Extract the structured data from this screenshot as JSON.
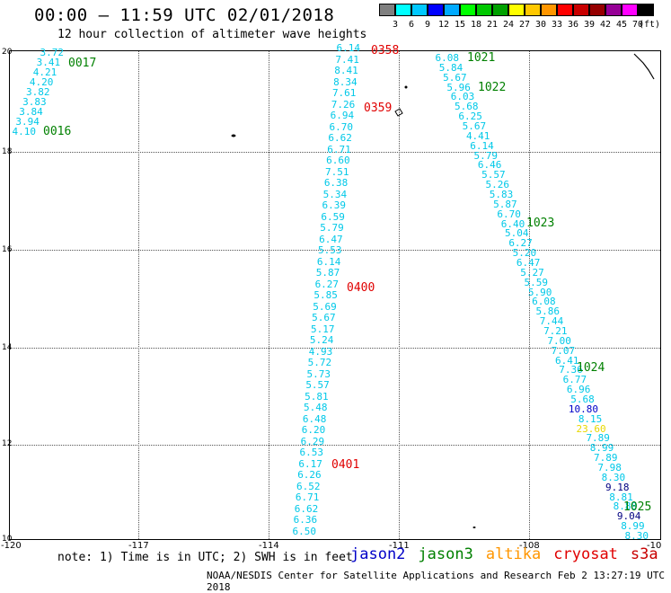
{
  "title": "00:00 – 11:59 UTC 02/01/2018",
  "subtitle": "12 hour collection of altimeter wave heights",
  "colorbar": {
    "labels": [
      "3",
      "6",
      "9",
      "12",
      "15",
      "18",
      "21",
      "24",
      "27",
      "30",
      "33",
      "36",
      "39",
      "42",
      "45",
      "70"
    ],
    "colors": [
      "#7f7f7f",
      "#00ffff",
      "#00c8ff",
      "#0000ff",
      "#00aaff",
      "#00ff00",
      "#00c800",
      "#00a000",
      "#ffff00",
      "#ffc800",
      "#ff9600",
      "#ff0000",
      "#c80000",
      "#960000",
      "#960096",
      "#ff00ff",
      "#000000"
    ],
    "unit": "(ft)"
  },
  "map": {
    "y_axis_labels": [
      "20",
      "18",
      "16",
      "14",
      "12",
      "10"
    ],
    "x_axis_labels": [
      "-120",
      "-117",
      "-114",
      "-111",
      "-108",
      "-10"
    ]
  },
  "tracks": [
    {
      "id": "t1",
      "color": "#00c8e8",
      "values": [
        "3.72",
        "3.41",
        "4.21",
        "4.20",
        "3.82",
        "3.83",
        "3.84",
        "3.94",
        "4.10"
      ]
    },
    {
      "id": "t2",
      "color": "#00c8e8",
      "values": [
        "6.14",
        "7.41",
        "8.41",
        "8.34",
        "7.61",
        "7.26",
        "6.94",
        "6.70",
        "6.62",
        "6.71",
        "6.60",
        "7.51",
        "6.38",
        "5.34",
        "6.39",
        "6.59",
        "5.79",
        "6.47",
        "5.53",
        "6.14",
        "5.87",
        "6.27",
        "5.85",
        "5.69",
        "5.67",
        "5.17",
        "5.24",
        "4.93",
        "5.72",
        "5.73",
        "5.57",
        "5.81",
        "5.48",
        "6.48",
        "6.20",
        "6.29",
        "6.53",
        "6.17",
        "6.26",
        "6.52",
        "6.71",
        "6.62",
        "6.36",
        "6.50"
      ]
    },
    {
      "id": "t3",
      "color": "#00c8e8",
      "values": [
        "6.08",
        "5.84",
        "5.67",
        "5.96",
        "6.03",
        "5.68",
        "6.25",
        "5.67",
        "4.41",
        "6.14",
        "5.79",
        "6.46",
        "5.57",
        "5.26",
        "5.83",
        "5.87",
        "6.70",
        "6.40",
        "5.04",
        "6.27",
        "5.20",
        "6.47",
        "5.27",
        "5.59",
        "5.90",
        "6.08",
        "5.86",
        "7.44",
        "7.21",
        "7.00",
        "7.07",
        "6.41",
        "7.36",
        "6.77",
        "6.96",
        "5.68",
        "10.80",
        "8.15",
        "23.60",
        "7.89",
        "8.99",
        "7.89",
        "7.98",
        "8.30",
        "9.18",
        "8.81",
        "8.88",
        "9.04",
        "8.99",
        "8.30"
      ]
    }
  ],
  "special_values": {
    "10.80": "#0000c8",
    "23.60": "#e8d800",
    "9.18": "#000080",
    "9.04": "#000080"
  },
  "time_labels": [
    {
      "text": "0017",
      "color": "#008000"
    },
    {
      "text": "0016",
      "color": "#008000"
    },
    {
      "text": "0358",
      "color": "#e00000"
    },
    {
      "text": "0359",
      "color": "#e00000"
    },
    {
      "text": "0400",
      "color": "#e00000"
    },
    {
      "text": "0401",
      "color": "#e00000"
    },
    {
      "text": "1021",
      "color": "#008000"
    },
    {
      "text": "1022",
      "color": "#008000"
    },
    {
      "text": "1023",
      "color": "#008000"
    },
    {
      "text": "1024",
      "color": "#008000"
    },
    {
      "text": "1025",
      "color": "#008000"
    }
  ],
  "note": "note: 1) Time is in UTC; 2) SWH is in feet",
  "legend": [
    {
      "name": "jason2",
      "color": "#0000c8"
    },
    {
      "name": "jason3",
      "color": "#008000"
    },
    {
      "name": "altika",
      "color": "#ff9600"
    },
    {
      "name": "cryosat",
      "color": "#e00000"
    },
    {
      "name": "s3a",
      "color": "#c80000"
    }
  ],
  "credit": "NOAA/NESDIS Center for Satellite Applications and Research   Feb  2 13:27:19 UTC 2018"
}
